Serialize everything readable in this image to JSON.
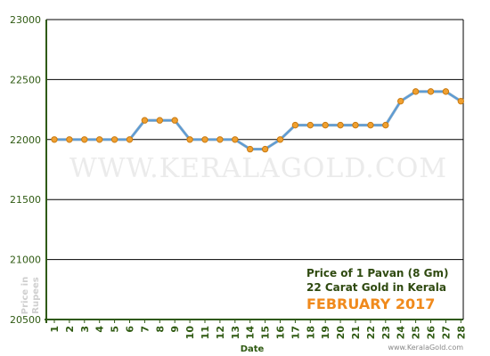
{
  "chart_data": {
    "type": "line",
    "title_lines": [
      "Price of 1 Pavan (8 Gm)",
      "22 Carat Gold in Kerala"
    ],
    "month_label": "FEBRUARY 2017",
    "xlabel": "Date",
    "ylabel_lines": [
      "Price in",
      "Rupees"
    ],
    "watermark": "WWW.KERALAGOLD.COM",
    "site_label": "www.KeralaGold.com",
    "ylim": [
      20500,
      23000
    ],
    "yticks": [
      "20500",
      "21000",
      "21500",
      "22000",
      "22500",
      "23000"
    ],
    "x": [
      "1",
      "2",
      "3",
      "4",
      "5",
      "6",
      "7",
      "8",
      "9",
      "10",
      "11",
      "12",
      "13",
      "14",
      "15",
      "16",
      "17",
      "18",
      "19",
      "20",
      "21",
      "22",
      "23",
      "24",
      "25",
      "26",
      "27",
      "28"
    ],
    "series": [
      {
        "values": [
          22000,
          22000,
          22000,
          22000,
          22000,
          22000,
          22160,
          22160,
          22160,
          22000,
          22000,
          22000,
          22000,
          21920,
          21920,
          22000,
          22120,
          22120,
          22120,
          22120,
          22120,
          22120,
          22120,
          22320,
          22400,
          22400,
          22400,
          22320
        ]
      }
    ],
    "grid": true,
    "colors": {
      "line": "#5b9bd5",
      "marker": "#f0a030",
      "marker_stroke": "#c97a10",
      "axis": "#2f5a12",
      "grid": "#000000",
      "month_text": "#f08a1c"
    }
  }
}
